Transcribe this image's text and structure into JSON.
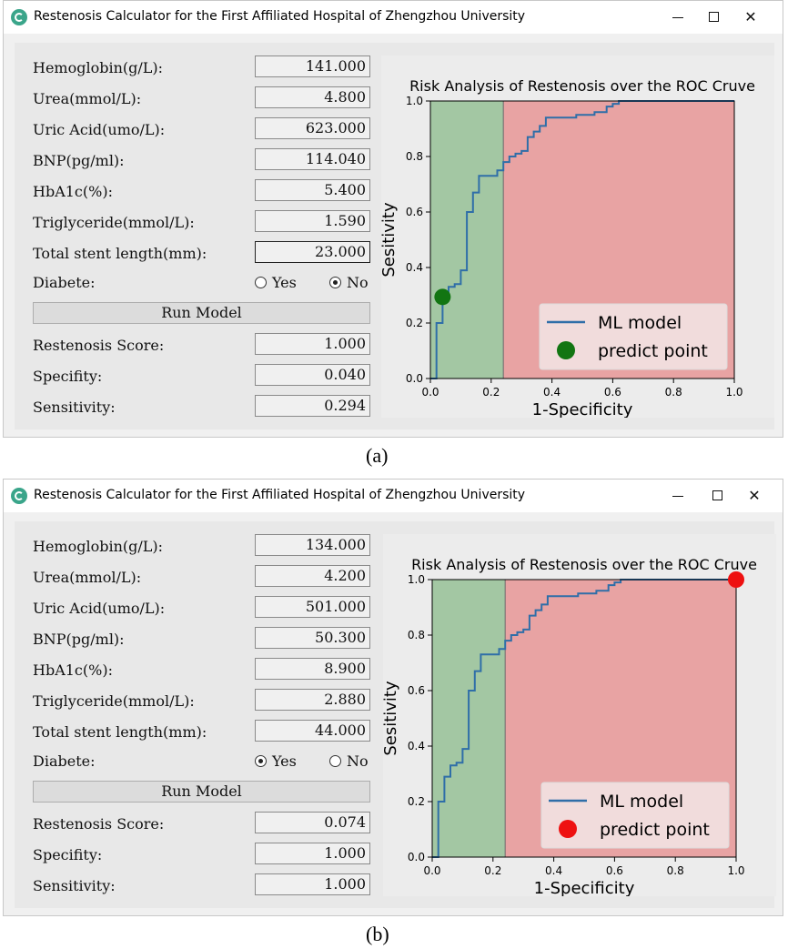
{
  "panels": [
    {
      "window_title": "Restenosis Calculator for the First Affiliated Hospital of Zhengzhou University",
      "inputs": [
        {
          "label": "Hemoglobin(g/L):",
          "value": "141.000"
        },
        {
          "label": "Urea(mmol/L):",
          "value": "4.800"
        },
        {
          "label": "Uric Acid(umo/L):",
          "value": "623.000"
        },
        {
          "label": "BNP(pg/ml):",
          "value": "114.040"
        },
        {
          "label": "HbA1c(%):",
          "value": "5.400"
        },
        {
          "label": "Triglyceride(mmol/L):",
          "value": "1.590"
        },
        {
          "label": "Total stent length(mm):",
          "value": "23.000"
        }
      ],
      "diabete": {
        "label": "Diabete:",
        "yes_label": "Yes",
        "no_label": "No",
        "selected": "no"
      },
      "run_label": "Run Model",
      "outputs": [
        {
          "label": "Restenosis Score:",
          "value": "1.000"
        },
        {
          "label": "Specifity:",
          "value": "0.040"
        },
        {
          "label": "Sensitivity:",
          "value": "0.294"
        }
      ],
      "caption": "(a)"
    },
    {
      "window_title": "Restenosis Calculator for the First Affiliated Hospital of Zhengzhou University",
      "inputs": [
        {
          "label": "Hemoglobin(g/L):",
          "value": "134.000"
        },
        {
          "label": "Urea(mmol/L):",
          "value": "4.200"
        },
        {
          "label": "Uric Acid(umo/L):",
          "value": "501.000"
        },
        {
          "label": "BNP(pg/ml):",
          "value": "50.300"
        },
        {
          "label": "HbA1c(%):",
          "value": "8.900"
        },
        {
          "label": "Triglyceride(mmol/L):",
          "value": "2.880"
        },
        {
          "label": "Total stent length(mm):",
          "value": "44.000"
        }
      ],
      "diabete": {
        "label": "Diabete:",
        "yes_label": "Yes",
        "no_label": "No",
        "selected": "yes"
      },
      "run_label": "Run Model",
      "outputs": [
        {
          "label": "Restenosis Score:",
          "value": "0.074"
        },
        {
          "label": "Specifity:",
          "value": "1.000"
        },
        {
          "label": "Sensitivity:",
          "value": "1.000"
        }
      ],
      "caption": "(b)"
    }
  ],
  "colors": {
    "green_region": "#a3c7a3",
    "red_region": "#e8a3a3",
    "roc_line": "#2f6ea8",
    "point_a": "#127512",
    "point_b": "#ee1111"
  },
  "chart_data": [
    {
      "type": "line",
      "title": "Risk Analysis of Restenosis over the ROC Cruve",
      "xlabel": "1-Specificity",
      "ylabel": "Sesitivity",
      "xlim": [
        0,
        1
      ],
      "ylim": [
        0,
        1
      ],
      "xticks": [
        "0.0",
        "0.2",
        "0.4",
        "0.6",
        "0.8",
        "1.0"
      ],
      "yticks": [
        "0.0",
        "0.2",
        "0.4",
        "0.6",
        "0.8",
        "1.0"
      ],
      "threshold_x": 0.24,
      "legend": {
        "position": "bottom-right",
        "line_label": "ML model",
        "point_label": "predict point"
      },
      "series": [
        {
          "name": "ML model",
          "x": [
            0.0,
            0.02,
            0.02,
            0.04,
            0.04,
            0.06,
            0.06,
            0.08,
            0.08,
            0.1,
            0.1,
            0.12,
            0.12,
            0.14,
            0.14,
            0.16,
            0.16,
            0.22,
            0.22,
            0.24,
            0.24,
            0.26,
            0.26,
            0.28,
            0.28,
            0.3,
            0.3,
            0.32,
            0.32,
            0.34,
            0.34,
            0.36,
            0.36,
            0.38,
            0.38,
            0.48,
            0.48,
            0.54,
            0.54,
            0.58,
            0.58,
            0.6,
            0.6,
            0.62,
            0.62,
            0.8,
            1.0
          ],
          "y": [
            0.0,
            0.0,
            0.2,
            0.2,
            0.29,
            0.29,
            0.33,
            0.33,
            0.34,
            0.34,
            0.39,
            0.39,
            0.6,
            0.6,
            0.67,
            0.67,
            0.73,
            0.73,
            0.75,
            0.75,
            0.78,
            0.78,
            0.8,
            0.8,
            0.81,
            0.81,
            0.82,
            0.82,
            0.87,
            0.87,
            0.89,
            0.89,
            0.91,
            0.91,
            0.94,
            0.94,
            0.95,
            0.95,
            0.96,
            0.96,
            0.98,
            0.98,
            0.99,
            0.99,
            1.0,
            1.0,
            1.0
          ]
        }
      ],
      "predict_point": {
        "x": 0.04,
        "y": 0.294
      }
    },
    {
      "type": "line",
      "title": "Risk Analysis of Restenosis over the ROC Cruve",
      "xlabel": "1-Specificity",
      "ylabel": "Sesitivity",
      "xlim": [
        0,
        1
      ],
      "ylim": [
        0,
        1
      ],
      "xticks": [
        "0.0",
        "0.2",
        "0.4",
        "0.6",
        "0.8",
        "1.0"
      ],
      "yticks": [
        "0.0",
        "0.2",
        "0.4",
        "0.6",
        "0.8",
        "1.0"
      ],
      "threshold_x": 0.24,
      "legend": {
        "position": "bottom-right",
        "line_label": "ML model",
        "point_label": "predict point"
      },
      "series": [
        {
          "name": "ML model",
          "x": [
            0.0,
            0.02,
            0.02,
            0.04,
            0.04,
            0.06,
            0.06,
            0.08,
            0.08,
            0.1,
            0.1,
            0.12,
            0.12,
            0.14,
            0.14,
            0.16,
            0.16,
            0.22,
            0.22,
            0.24,
            0.24,
            0.26,
            0.26,
            0.28,
            0.28,
            0.3,
            0.3,
            0.32,
            0.32,
            0.34,
            0.34,
            0.36,
            0.36,
            0.38,
            0.38,
            0.48,
            0.48,
            0.54,
            0.54,
            0.58,
            0.58,
            0.6,
            0.6,
            0.62,
            0.62,
            0.8,
            1.0
          ],
          "y": [
            0.0,
            0.0,
            0.2,
            0.2,
            0.29,
            0.29,
            0.33,
            0.33,
            0.34,
            0.34,
            0.39,
            0.39,
            0.6,
            0.6,
            0.67,
            0.67,
            0.73,
            0.73,
            0.75,
            0.75,
            0.78,
            0.78,
            0.8,
            0.8,
            0.81,
            0.81,
            0.82,
            0.82,
            0.87,
            0.87,
            0.89,
            0.89,
            0.91,
            0.91,
            0.94,
            0.94,
            0.95,
            0.95,
            0.96,
            0.96,
            0.98,
            0.98,
            0.99,
            0.99,
            1.0,
            1.0,
            1.0
          ]
        }
      ],
      "predict_point": {
        "x": 1.0,
        "y": 1.0
      }
    }
  ]
}
